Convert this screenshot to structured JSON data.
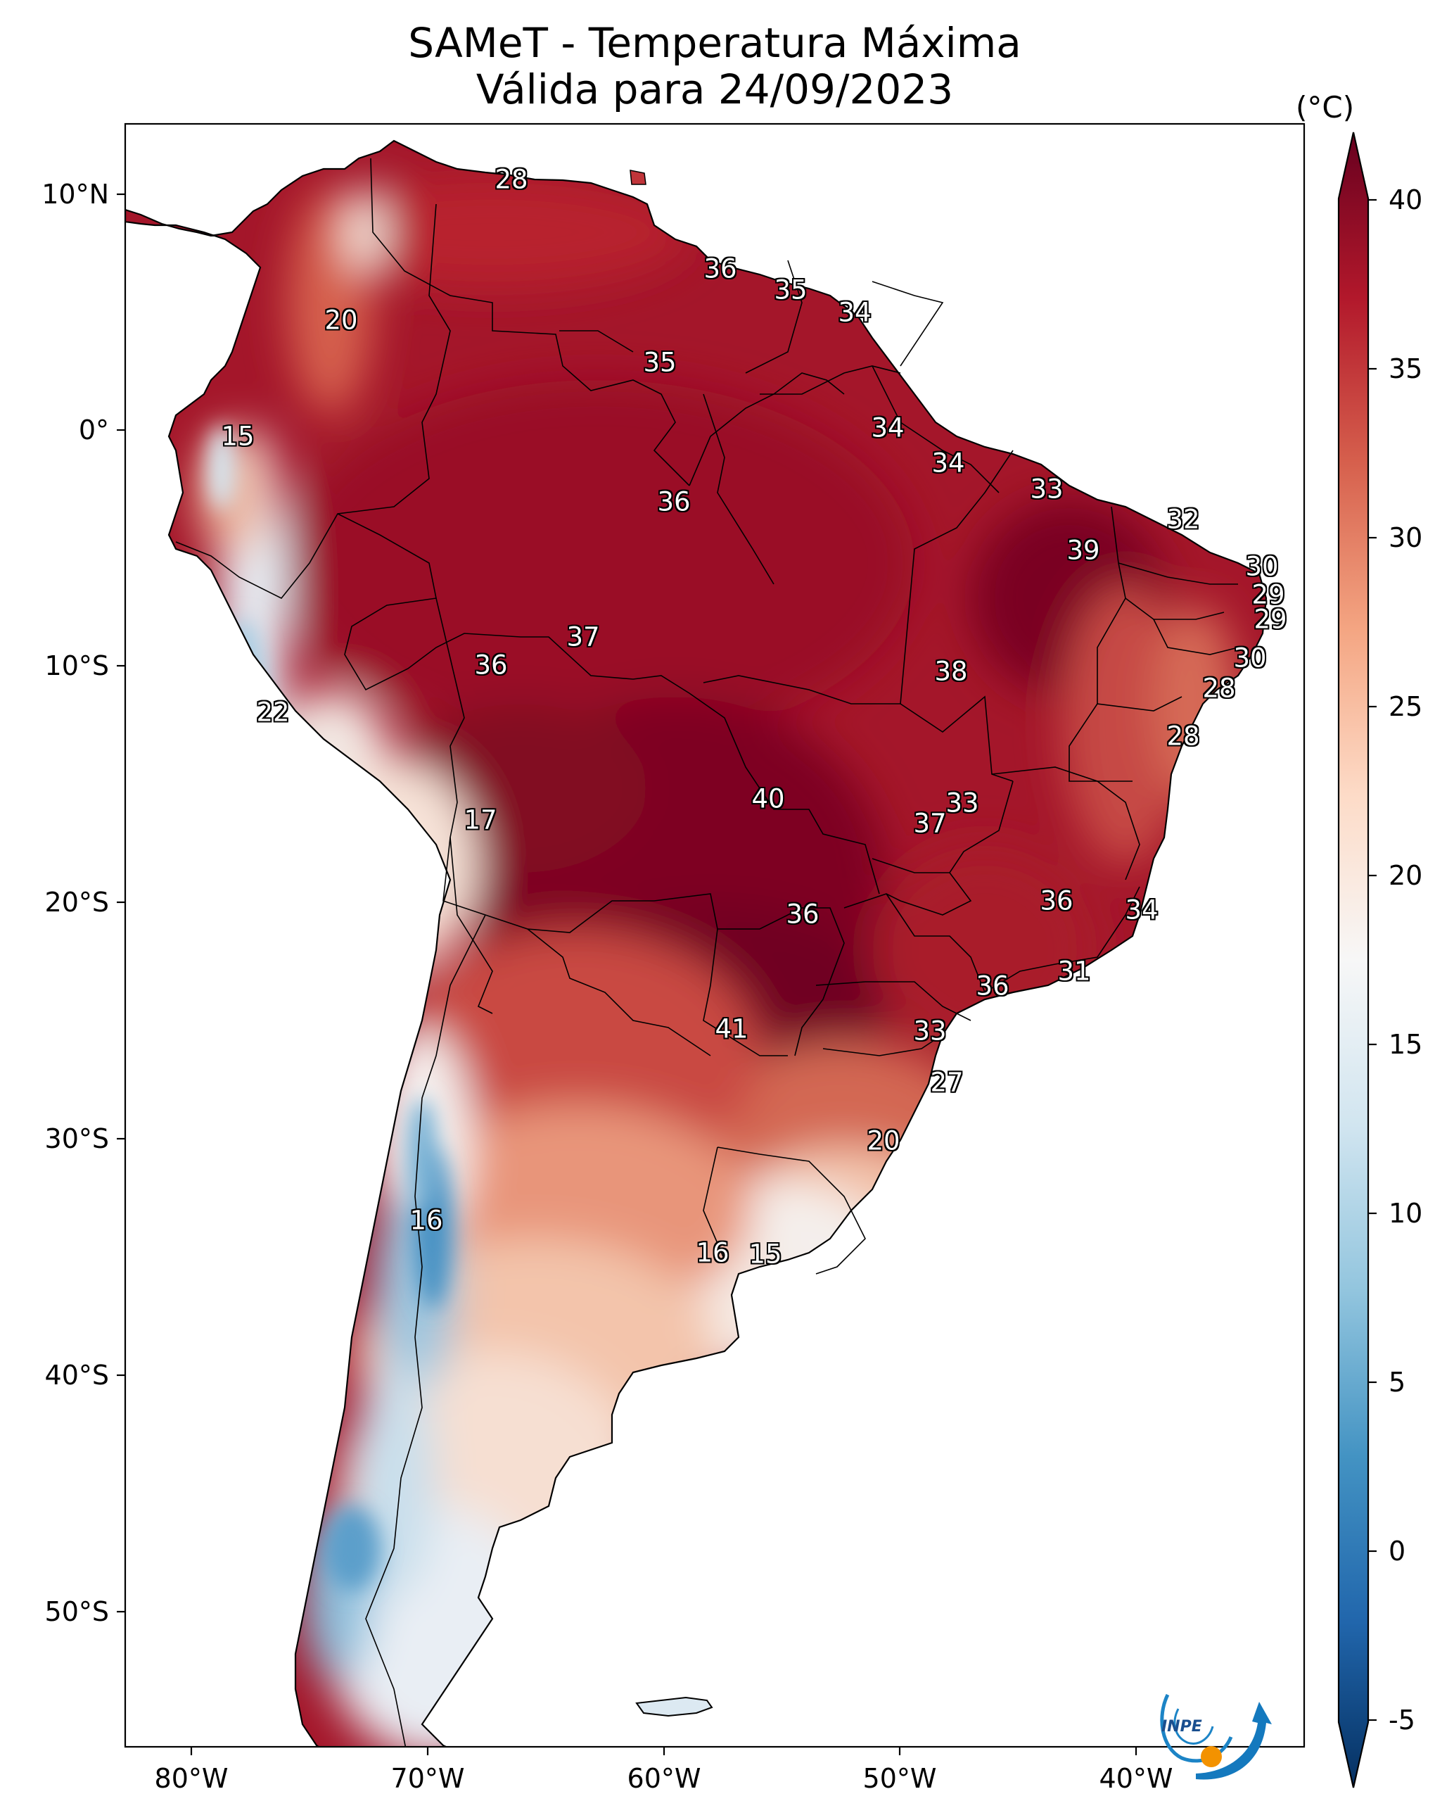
{
  "title": {
    "line1": "SAMeT - Temperatura Máxima",
    "line2": "Válida para 24/09/2023"
  },
  "colorbar": {
    "units": "(°C)",
    "ticks": [
      "40",
      "35",
      "30",
      "25",
      "20",
      "15",
      "10",
      "5",
      "0",
      "-5"
    ],
    "min": -7,
    "max": 42,
    "palette": [
      "#053061",
      "#2166ac",
      "#4393c3",
      "#92c5de",
      "#d1e5f0",
      "#f7f7f7",
      "#fddbc7",
      "#f4a582",
      "#d6604d",
      "#b2182b",
      "#67001f"
    ]
  },
  "axes": {
    "lon_labels": [
      "80°W",
      "70°W",
      "60°W",
      "50°W",
      "40°W"
    ],
    "lat_labels": [
      "10°N",
      "0°",
      "10°S",
      "20°S",
      "30°S",
      "40°S",
      "50°S"
    ]
  },
  "map_labels": [
    {
      "text": "28"
    },
    {
      "text": "36"
    },
    {
      "text": "35"
    },
    {
      "text": "34"
    },
    {
      "text": "20"
    },
    {
      "text": "35"
    },
    {
      "text": "15"
    },
    {
      "text": "34"
    },
    {
      "text": "34"
    },
    {
      "text": "33"
    },
    {
      "text": "36"
    },
    {
      "text": "32"
    },
    {
      "text": "39"
    },
    {
      "text": "30"
    },
    {
      "text": "29"
    },
    {
      "text": "29"
    },
    {
      "text": "37"
    },
    {
      "text": "36"
    },
    {
      "text": "30"
    },
    {
      "text": "38"
    },
    {
      "text": "28"
    },
    {
      "text": "22"
    },
    {
      "text": "28"
    },
    {
      "text": "40"
    },
    {
      "text": "33"
    },
    {
      "text": "17"
    },
    {
      "text": "37"
    },
    {
      "text": "36"
    },
    {
      "text": "36"
    },
    {
      "text": "34"
    },
    {
      "text": "31"
    },
    {
      "text": "36"
    },
    {
      "text": "41"
    },
    {
      "text": "33"
    },
    {
      "text": "27"
    },
    {
      "text": "20"
    },
    {
      "text": "16"
    },
    {
      "text": "16"
    },
    {
      "text": "15"
    }
  ],
  "logo": {
    "text": "INPE"
  }
}
